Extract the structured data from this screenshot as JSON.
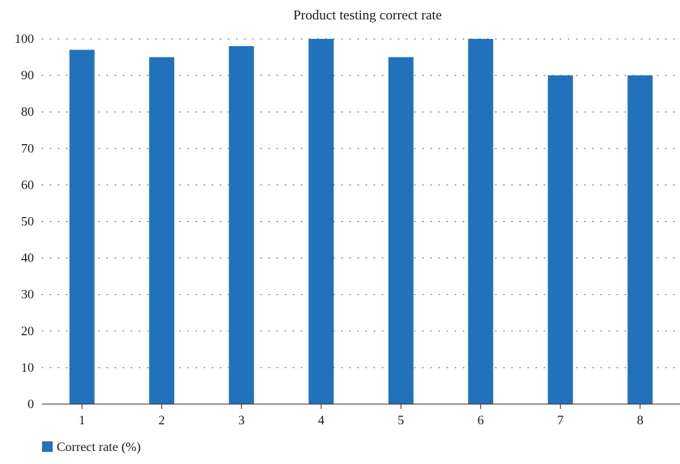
{
  "chart_data": {
    "type": "bar",
    "title": "Product testing correct rate",
    "xlabel": "",
    "ylabel": "",
    "categories": [
      "1",
      "2",
      "3",
      "4",
      "5",
      "6",
      "7",
      "8"
    ],
    "series": [
      {
        "name": "Correct rate (%)",
        "values": [
          97,
          95,
          98,
          100,
          95,
          100,
          90,
          90
        ],
        "color": "#2271bc"
      }
    ],
    "ylim": [
      0,
      100
    ],
    "yticks": [
      0,
      10,
      20,
      30,
      40,
      50,
      60,
      70,
      80,
      90,
      100
    ],
    "grid": "horizontal-dotted",
    "legend": "bottom-left"
  }
}
